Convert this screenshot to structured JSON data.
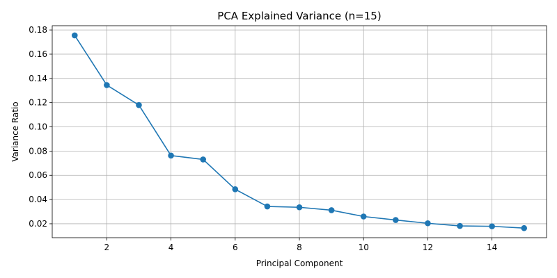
{
  "chart_data": {
    "type": "line",
    "title": "PCA Explained Variance (n=15)",
    "xlabel": "Principal Component",
    "ylabel": "Variance Ratio",
    "xlim": [
      0.3,
      15.7
    ],
    "ylim": [
      0.0085,
      0.1835
    ],
    "xticks": [
      2,
      4,
      6,
      8,
      10,
      12,
      14
    ],
    "yticks": [
      0.02,
      0.04,
      0.06,
      0.08,
      0.1,
      0.12,
      0.14,
      0.16,
      0.18
    ],
    "ytick_labels": [
      "0.02",
      "0.04",
      "0.06",
      "0.08",
      "0.10",
      "0.12",
      "0.14",
      "0.16",
      "0.18"
    ],
    "grid": true,
    "color": "#1f77b4",
    "marker": "circle",
    "series": [
      {
        "x": [
          1,
          2,
          3,
          4,
          5,
          6,
          7,
          8,
          9,
          10,
          11,
          12,
          13,
          14,
          15
        ],
        "values": [
          0.1755,
          0.1345,
          0.118,
          0.0763,
          0.0731,
          0.0485,
          0.0343,
          0.0336,
          0.0312,
          0.026,
          0.0231,
          0.0204,
          0.0182,
          0.0179,
          0.0164
        ]
      }
    ]
  }
}
